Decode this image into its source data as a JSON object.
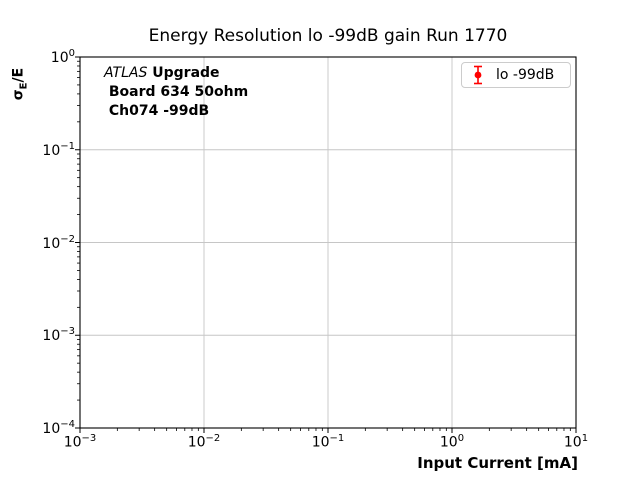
{
  "chart_data": {
    "type": "scatter",
    "title": "Energy Resolution lo -99dB gain Run 1770",
    "xlabel": "Input Current [mA]",
    "ylabel": "σE/E",
    "ylabel_parts": {
      "sigma": "σ",
      "sub": "E",
      "rest": "/E"
    },
    "xscale": "log",
    "yscale": "log",
    "xlim": [
      0.001,
      10
    ],
    "ylim": [
      0.0001,
      1
    ],
    "x_tick_exponents": [
      -3,
      -2,
      -1,
      0,
      1
    ],
    "y_tick_exponents": [
      0,
      -1,
      -2,
      -3,
      -4
    ],
    "grid": true,
    "legend_position": "upper right",
    "legend": {
      "entries": [
        {
          "label": "lo -99dB",
          "color": "#ff0000",
          "marker": "errorbar-circle"
        }
      ]
    },
    "annotation": {
      "line1_italic": "ATLAS",
      "line1_bold": " Upgrade",
      "line2": " Board 634 50ohm",
      "line3": " Ch074 -99dB"
    },
    "series": [
      {
        "name": "lo -99dB",
        "color": "#ff0000",
        "marker": "o",
        "linestyle": "none",
        "points": []
      }
    ],
    "colors": {
      "grid": "#c6c6c6",
      "spine": "#000000",
      "series": "#ff0000",
      "text": "#000000"
    }
  }
}
